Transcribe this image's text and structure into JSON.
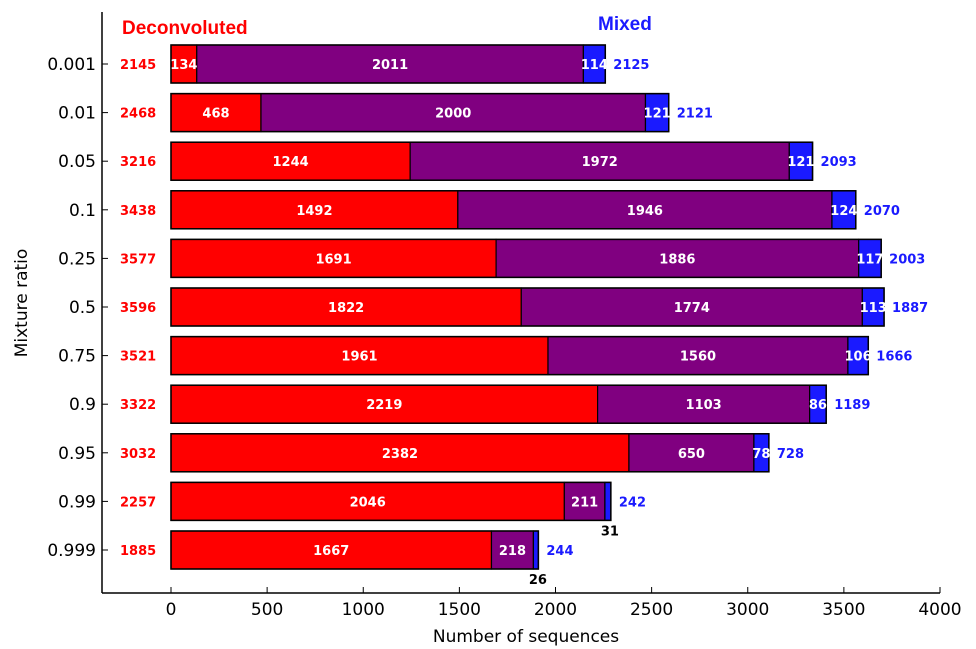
{
  "chart_data": {
    "type": "bar",
    "orientation": "horizontal",
    "stacked": true,
    "xlabel": "Number of sequences",
    "ylabel": "Mixture ratio",
    "xlim": [
      -350,
      4000
    ],
    "xticks": [
      "0",
      "500",
      "1000",
      "1500",
      "2000",
      "2500",
      "3000",
      "3500",
      "4000"
    ],
    "xtick_values": [
      0,
      500,
      1000,
      1500,
      2000,
      2500,
      3000,
      3500,
      4000
    ],
    "categories": [
      "0.001",
      "0.01",
      "0.05",
      "0.1",
      "0.25",
      "0.5",
      "0.75",
      "0.9",
      "0.95",
      "0.99",
      "0.999"
    ],
    "headers": {
      "left": "Deconvoluted",
      "right": "Mixed"
    },
    "series": [
      {
        "name": "",
        "color": "#ff0000",
        "values": [
          134,
          468,
          1244,
          1492,
          1691,
          1822,
          1961,
          2219,
          2382,
          2046,
          1667
        ]
      },
      {
        "name": "",
        "color": "#800080",
        "values": [
          2011,
          2000,
          1972,
          1946,
          1886,
          1774,
          1560,
          1103,
          650,
          211,
          218
        ]
      },
      {
        "name": "",
        "color": "#1a1aff",
        "values": [
          114,
          121,
          121,
          124,
          117,
          113,
          106,
          86,
          78,
          31,
          26
        ]
      }
    ],
    "deconvoluted_totals": [
      2145,
      2468,
      3216,
      3438,
      3577,
      3596,
      3521,
      3322,
      3032,
      2257,
      1885
    ],
    "mixed_totals": [
      2125,
      2121,
      2093,
      2070,
      2003,
      1887,
      1666,
      1189,
      728,
      242,
      244
    ],
    "grid": false
  },
  "colors": {
    "deconvoluted": "#ff0000",
    "shared": "#800080",
    "mixed": "#1a1aff",
    "axis": "#000000"
  }
}
